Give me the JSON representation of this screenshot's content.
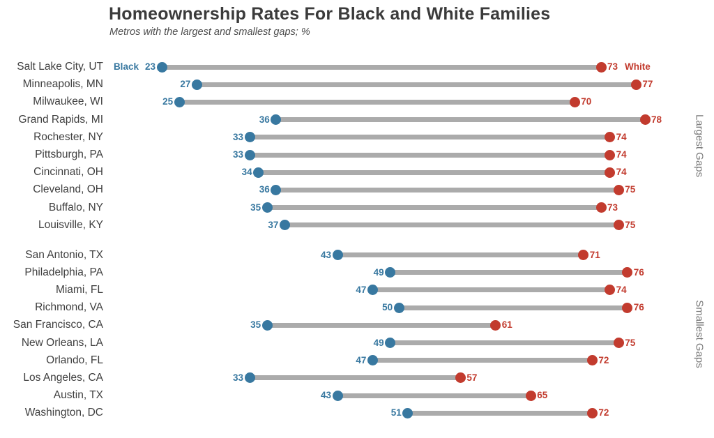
{
  "header": {
    "title": "Homeownership Rates For Black and White Families",
    "subtitle": "Metros with the largest and smallest gaps; %"
  },
  "legend": {
    "black_label": "Black",
    "white_label": "White"
  },
  "group_labels": {
    "largest": "Largest Gaps",
    "smallest": "Smallest Gaps"
  },
  "colors": {
    "black_dot": "#3878a0",
    "white_dot": "#c23b2e",
    "bar": "#ababab"
  },
  "chart_data": {
    "type": "dumbbell",
    "title": "Homeownership Rates For Black and White Families",
    "subtitle": "Metros with the largest and smallest gaps; %",
    "unit": "%",
    "series_names": [
      "Black",
      "White"
    ],
    "axis": {
      "visible": false,
      "value_range_implied": [
        0,
        100
      ]
    },
    "legend_position": "inline-first-row",
    "groups": [
      {
        "label": "Largest Gaps",
        "metros": [
          {
            "name": "Salt Lake City, UT",
            "black": 23,
            "white": 73
          },
          {
            "name": "Minneapolis, MN",
            "black": 27,
            "white": 77
          },
          {
            "name": "Milwaukee, WI",
            "black": 25,
            "white": 70
          },
          {
            "name": "Grand Rapids, MI",
            "black": 36,
            "white": 78
          },
          {
            "name": "Rochester, NY",
            "black": 33,
            "white": 74
          },
          {
            "name": "Pittsburgh, PA",
            "black": 33,
            "white": 74
          },
          {
            "name": "Cincinnati, OH",
            "black": 34,
            "white": 74
          },
          {
            "name": "Cleveland, OH",
            "black": 36,
            "white": 75
          },
          {
            "name": "Buffalo, NY",
            "black": 35,
            "white": 73
          },
          {
            "name": "Louisville, KY",
            "black": 37,
            "white": 75
          }
        ]
      },
      {
        "label": "Smallest Gaps",
        "metros": [
          {
            "name": "San Antonio, TX",
            "black": 43,
            "white": 71
          },
          {
            "name": "Philadelphia, PA",
            "black": 49,
            "white": 76
          },
          {
            "name": "Miami, FL",
            "black": 47,
            "white": 74
          },
          {
            "name": "Richmond, VA",
            "black": 50,
            "white": 76
          },
          {
            "name": "San Francisco, CA",
            "black": 35,
            "white": 61
          },
          {
            "name": "New Orleans, LA",
            "black": 49,
            "white": 75
          },
          {
            "name": "Orlando, FL",
            "black": 47,
            "white": 72
          },
          {
            "name": "Los Angeles, CA",
            "black": 33,
            "white": 57
          },
          {
            "name": "Austin, TX",
            "black": 43,
            "white": 65
          },
          {
            "name": "Washington, DC",
            "black": 51,
            "white": 72
          }
        ]
      }
    ]
  }
}
